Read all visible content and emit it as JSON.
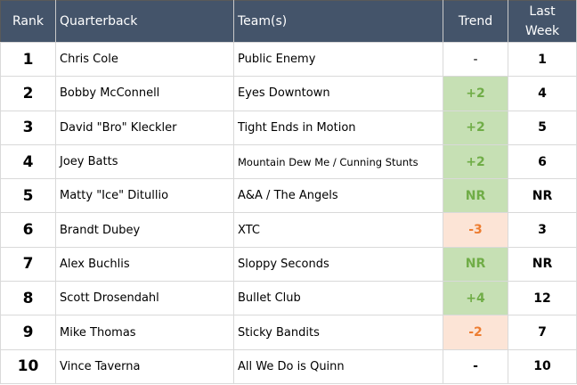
{
  "table": {
    "header": [
      "Rank",
      "Quarterback",
      "Team(s)",
      "Trend",
      "Last Week"
    ],
    "rows": [
      [
        "1",
        "Chris Cole",
        "Public Enemy",
        "-",
        "1"
      ],
      [
        "2",
        "Bobby McConnell",
        "Eyes Downtown",
        "+2",
        "4"
      ],
      [
        "3",
        "David \"Bro\" Kleckler",
        "Tight Ends in Motion",
        "+2",
        "5"
      ],
      [
        "4",
        "Joey Batts",
        "Mountain Dew Me / Cunning Stunts",
        "+2",
        "6"
      ],
      [
        "5",
        "Matty \"Ice\" Ditullio",
        "A&A / The Angels",
        "NR",
        "NR"
      ],
      [
        "6",
        "Brandt Dubey",
        "XTC",
        "-3",
        "3"
      ],
      [
        "7",
        "Alex Buchlis",
        "Sloppy Seconds",
        "NR",
        "NR"
      ],
      [
        "8",
        "Scott Drosendahl",
        "Bullet Club",
        "+4",
        "12"
      ],
      [
        "9",
        "Mike Thomas",
        "Sticky Bandits",
        "-2",
        "7"
      ],
      [
        "10",
        "Vince Taverna",
        "All We Do is Quinn",
        "-",
        "10"
      ]
    ]
  }
}
